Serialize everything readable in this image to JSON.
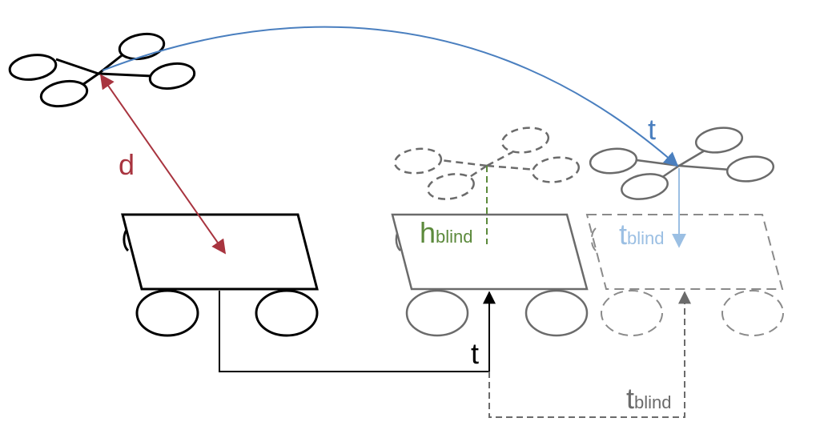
{
  "labels": {
    "distance": "d",
    "drone_flight_time": "t",
    "blind_height": {
      "main": "h",
      "sub": "blind"
    },
    "blind_time_drone": {
      "main": "t",
      "sub": "blind"
    },
    "vehicle_travel_time": "t",
    "blind_time_vehicle": {
      "main": "t",
      "sub": "blind"
    }
  },
  "colors": {
    "black": "#000000",
    "gray": "#6b6b6b",
    "light_gray": "#8a8a8a",
    "red": "#a8343f",
    "blue": "#4a7fbf",
    "light_blue": "#9bbfe3",
    "green": "#5c8a3c"
  },
  "icons": [
    "drone-icon",
    "vehicle-icon"
  ]
}
